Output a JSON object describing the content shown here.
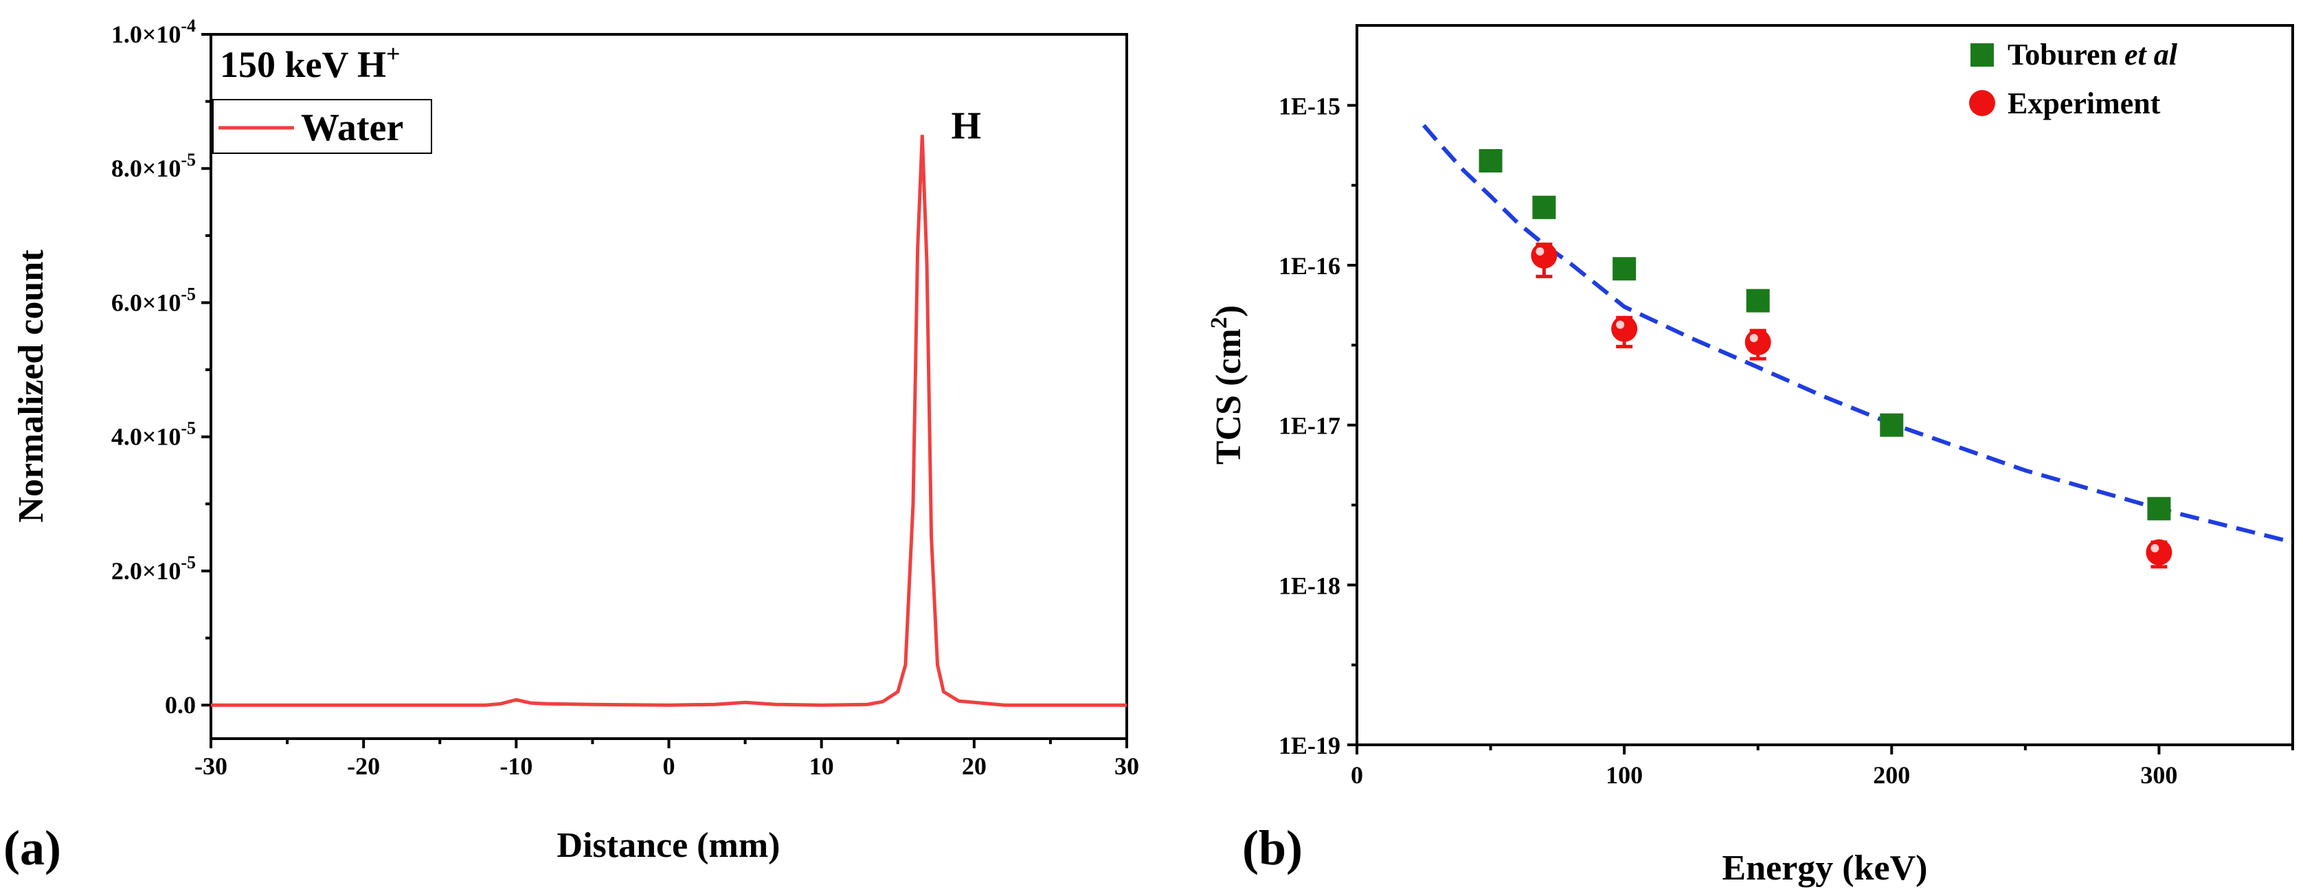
{
  "colors": {
    "water_line": "#f04040",
    "toburen": "#1a7a1a",
    "experiment": "#ee1111",
    "fit": "#1f3de0"
  },
  "chart_data": [
    {
      "panel_label": "(a)",
      "type": "line",
      "title": "150 keV H",
      "title_sup": "+",
      "xlabel": "Distance (mm)",
      "ylabel": "Normalized count",
      "xlim": [
        -30,
        30
      ],
      "ylim": [
        -5e-06,
        0.0001
      ],
      "xticks": [
        -30,
        -20,
        -10,
        0,
        10,
        20,
        30
      ],
      "xtick_labels": [
        "-30",
        "-20",
        "-10",
        "0",
        "10",
        "20",
        "30"
      ],
      "yticks": [
        0,
        2e-05,
        4e-05,
        6e-05,
        8e-05,
        0.0001
      ],
      "ytick_labels": [
        {
          "base": "0.0",
          "exp": ""
        },
        {
          "base": "2.0×10",
          "exp": "-5"
        },
        {
          "base": "4.0×10",
          "exp": "-5"
        },
        {
          "base": "6.0×10",
          "exp": "-5"
        },
        {
          "base": "8.0×10",
          "exp": "-5"
        },
        {
          "base": "1.0×10",
          "exp": "-4"
        }
      ],
      "legend": [
        "Water"
      ],
      "annotation": {
        "text": "H",
        "x": 18.5,
        "y": 8.45e-05
      },
      "series": [
        {
          "name": "Water",
          "x": [
            -30,
            -15,
            -12,
            -11,
            -10,
            -9,
            -8,
            -5,
            0,
            3,
            5,
            7,
            10,
            13,
            14,
            15,
            15.5,
            16,
            16.3,
            16.6,
            16.9,
            17.2,
            17.6,
            18,
            19,
            20,
            21,
            22,
            25,
            30
          ],
          "y": [
            0,
            0,
            0,
            2e-07,
            8e-07,
            3e-07,
            2e-07,
            1e-07,
            0,
            1e-07,
            4e-07,
            1e-07,
            0,
            1e-07,
            5e-07,
            2e-06,
            6e-06,
            3e-05,
            6.8e-05,
            8.5e-05,
            6.6e-05,
            2.5e-05,
            6e-06,
            2e-06,
            6e-07,
            4e-07,
            2e-07,
            0,
            0,
            0
          ]
        }
      ]
    },
    {
      "panel_label": "(b)",
      "type": "scatter",
      "xlabel": "Energy (keV)",
      "ylabel_base": "TCS (cm",
      "ylabel_sup": "2",
      "ylabel_end": ")",
      "xlim": [
        0,
        350
      ],
      "ylim_log10": [
        -19,
        -14.5
      ],
      "xticks": [
        0,
        100,
        200,
        300
      ],
      "xtick_labels": [
        "0",
        "100",
        "200",
        "300"
      ],
      "yticks_log10": [
        -19,
        -18,
        -17,
        -16,
        -15
      ],
      "ytick_labels": [
        "1E-19",
        "1E-18",
        "1E-17",
        "1E-16",
        "1E-15"
      ],
      "legend": {
        "toburen_prefix": "Toburen ",
        "toburen_italic": "et al",
        "experiment": "Experiment"
      },
      "series": [
        {
          "name": "Toburen et al",
          "marker": "square",
          "x": [
            50,
            70,
            100,
            150,
            200,
            300
          ],
          "y": [
            4.5e-16,
            2.3e-16,
            9.5e-17,
            6e-17,
            1e-17,
            3e-18
          ]
        },
        {
          "name": "Experiment",
          "marker": "circle",
          "x": [
            70,
            100,
            150,
            300
          ],
          "y": [
            1.15e-16,
            4e-17,
            3.3e-17,
            1.6e-18
          ],
          "err_low": [
            8.5e-17,
            3.1e-17,
            2.6e-17,
            1.3e-18
          ],
          "err_high": [
            1.35e-16,
            4.7e-17,
            3.9e-17,
            1.85e-18
          ]
        },
        {
          "name": "fit",
          "style": "dashed",
          "x": [
            25,
            30,
            40,
            50,
            60,
            70,
            80,
            100,
            125,
            150,
            175,
            200,
            250,
            300,
            350
          ],
          "y": [
            7.5e-16,
            6e-16,
            3.9e-16,
            2.7e-16,
            1.85e-16,
            1.35e-16,
            1.02e-16,
            5.5e-17,
            3.5e-17,
            2.3e-17,
            1.5e-17,
            1.02e-17,
            5.2e-18,
            3e-18,
            1.85e-18
          ]
        }
      ]
    }
  ]
}
